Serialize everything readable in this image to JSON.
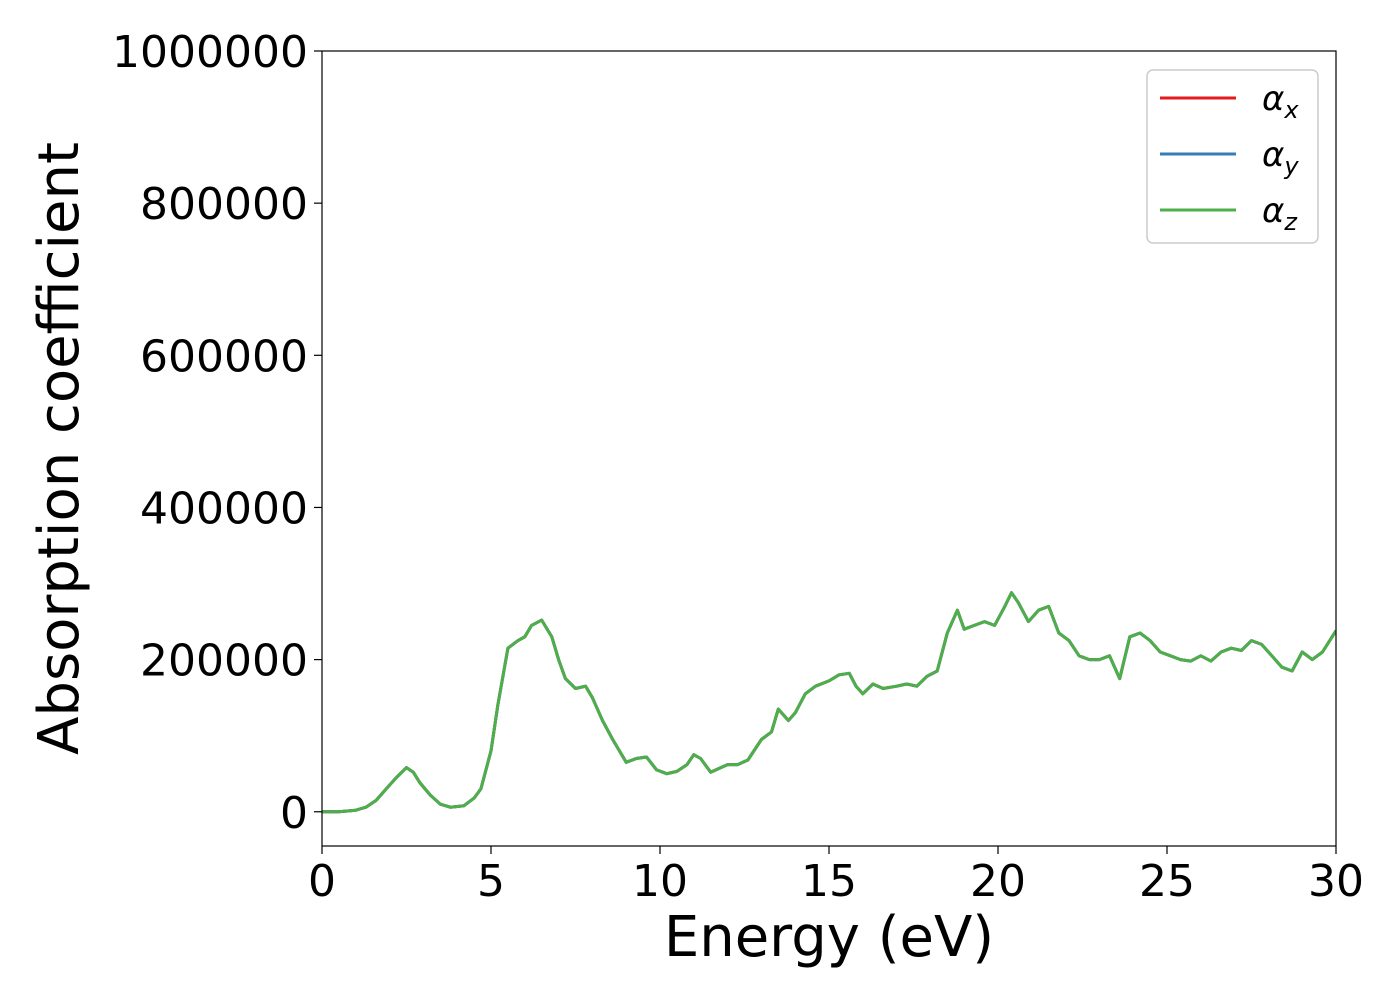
{
  "chart_data": {
    "type": "line",
    "title": "",
    "xlabel": "Energy (eV)",
    "ylabel": "Absorption coefficient",
    "xlim": [
      0,
      30
    ],
    "ylim": [
      -45000,
      1000000
    ],
    "x_ticks": [
      0,
      5,
      10,
      15,
      20,
      25,
      30
    ],
    "y_ticks": [
      0,
      200000,
      400000,
      600000,
      800000,
      1000000
    ],
    "grid": false,
    "legend_position": "top-right",
    "x": [
      0,
      0.5,
      1,
      1.3,
      1.6,
      1.9,
      2.2,
      2.5,
      2.7,
      2.9,
      3.2,
      3.5,
      3.8,
      4.2,
      4.5,
      4.7,
      5.0,
      5.2,
      5.5,
      5.8,
      6.0,
      6.2,
      6.5,
      6.8,
      7.0,
      7.2,
      7.5,
      7.8,
      8.0,
      8.3,
      8.6,
      9.0,
      9.3,
      9.6,
      9.9,
      10.2,
      10.5,
      10.8,
      11.0,
      11.2,
      11.5,
      11.8,
      12.0,
      12.3,
      12.6,
      13.0,
      13.3,
      13.5,
      13.8,
      14.0,
      14.3,
      14.6,
      15.0,
      15.3,
      15.6,
      15.8,
      16.0,
      16.3,
      16.6,
      17.0,
      17.3,
      17.6,
      17.9,
      18.2,
      18.5,
      18.8,
      19.0,
      19.3,
      19.6,
      19.9,
      20.2,
      20.4,
      20.6,
      20.9,
      21.2,
      21.5,
      21.8,
      22.1,
      22.4,
      22.7,
      23.0,
      23.3,
      23.6,
      23.9,
      24.2,
      24.5,
      24.8,
      25.1,
      25.4,
      25.7,
      26.0,
      26.3,
      26.6,
      26.9,
      27.2,
      27.5,
      27.8,
      28.1,
      28.4,
      28.7,
      29.0,
      29.3,
      29.6,
      30.0
    ],
    "series": [
      {
        "name": "α_x",
        "label_base": "α",
        "label_sub": "x",
        "color": "#e41a1c",
        "values": [
          0,
          0,
          2000,
          6000,
          15000,
          30000,
          45000,
          58000,
          52000,
          38000,
          22000,
          10000,
          6000,
          8000,
          18000,
          30000,
          80000,
          140000,
          215000,
          225000,
          230000,
          245000,
          252000,
          230000,
          200000,
          175000,
          162000,
          165000,
          150000,
          120000,
          95000,
          65000,
          70000,
          72000,
          55000,
          50000,
          53000,
          62000,
          75000,
          70000,
          52000,
          58000,
          62000,
          62000,
          68000,
          95000,
          105000,
          135000,
          120000,
          130000,
          155000,
          165000,
          172000,
          180000,
          182000,
          165000,
          155000,
          168000,
          162000,
          165000,
          168000,
          165000,
          178000,
          185000,
          235000,
          265000,
          240000,
          245000,
          250000,
          245000,
          270000,
          288000,
          275000,
          250000,
          265000,
          270000,
          235000,
          225000,
          205000,
          200000,
          200000,
          205000,
          175000,
          230000,
          235000,
          225000,
          210000,
          205000,
          200000,
          198000,
          205000,
          198000,
          210000,
          215000,
          212000,
          225000,
          220000,
          205000,
          190000,
          185000,
          210000,
          200000,
          210000,
          238000
        ]
      },
      {
        "name": "α_y",
        "label_base": "α",
        "label_sub": "y",
        "color": "#377eb8",
        "values": [
          0,
          0,
          2000,
          6000,
          15000,
          30000,
          45000,
          58000,
          52000,
          38000,
          22000,
          10000,
          6000,
          8000,
          18000,
          30000,
          80000,
          140000,
          215000,
          225000,
          230000,
          245000,
          252000,
          230000,
          200000,
          175000,
          162000,
          165000,
          150000,
          120000,
          95000,
          65000,
          70000,
          72000,
          55000,
          50000,
          53000,
          62000,
          75000,
          70000,
          52000,
          58000,
          62000,
          62000,
          68000,
          95000,
          105000,
          135000,
          120000,
          130000,
          155000,
          165000,
          172000,
          180000,
          182000,
          165000,
          155000,
          168000,
          162000,
          165000,
          168000,
          165000,
          178000,
          185000,
          235000,
          265000,
          240000,
          245000,
          250000,
          245000,
          270000,
          288000,
          275000,
          250000,
          265000,
          270000,
          235000,
          225000,
          205000,
          200000,
          200000,
          205000,
          175000,
          230000,
          235000,
          225000,
          210000,
          205000,
          200000,
          198000,
          205000,
          198000,
          210000,
          215000,
          212000,
          225000,
          220000,
          205000,
          190000,
          185000,
          210000,
          200000,
          210000,
          238000
        ]
      },
      {
        "name": "α_z",
        "label_base": "α",
        "label_sub": "z",
        "color": "#4daf4a",
        "values": [
          0,
          0,
          2000,
          6000,
          15000,
          30000,
          45000,
          58000,
          52000,
          38000,
          22000,
          10000,
          6000,
          8000,
          18000,
          30000,
          80000,
          140000,
          215000,
          225000,
          230000,
          245000,
          252000,
          230000,
          200000,
          175000,
          162000,
          165000,
          150000,
          120000,
          95000,
          65000,
          70000,
          72000,
          55000,
          50000,
          53000,
          62000,
          75000,
          70000,
          52000,
          58000,
          62000,
          62000,
          68000,
          95000,
          105000,
          135000,
          120000,
          130000,
          155000,
          165000,
          172000,
          180000,
          182000,
          165000,
          155000,
          168000,
          162000,
          165000,
          168000,
          165000,
          178000,
          185000,
          235000,
          265000,
          240000,
          245000,
          250000,
          245000,
          270000,
          288000,
          275000,
          250000,
          265000,
          270000,
          235000,
          225000,
          205000,
          200000,
          200000,
          205000,
          175000,
          230000,
          235000,
          225000,
          210000,
          205000,
          200000,
          198000,
          205000,
          198000,
          210000,
          215000,
          212000,
          225000,
          220000,
          205000,
          190000,
          185000,
          210000,
          200000,
          210000,
          238000
        ]
      }
    ]
  }
}
